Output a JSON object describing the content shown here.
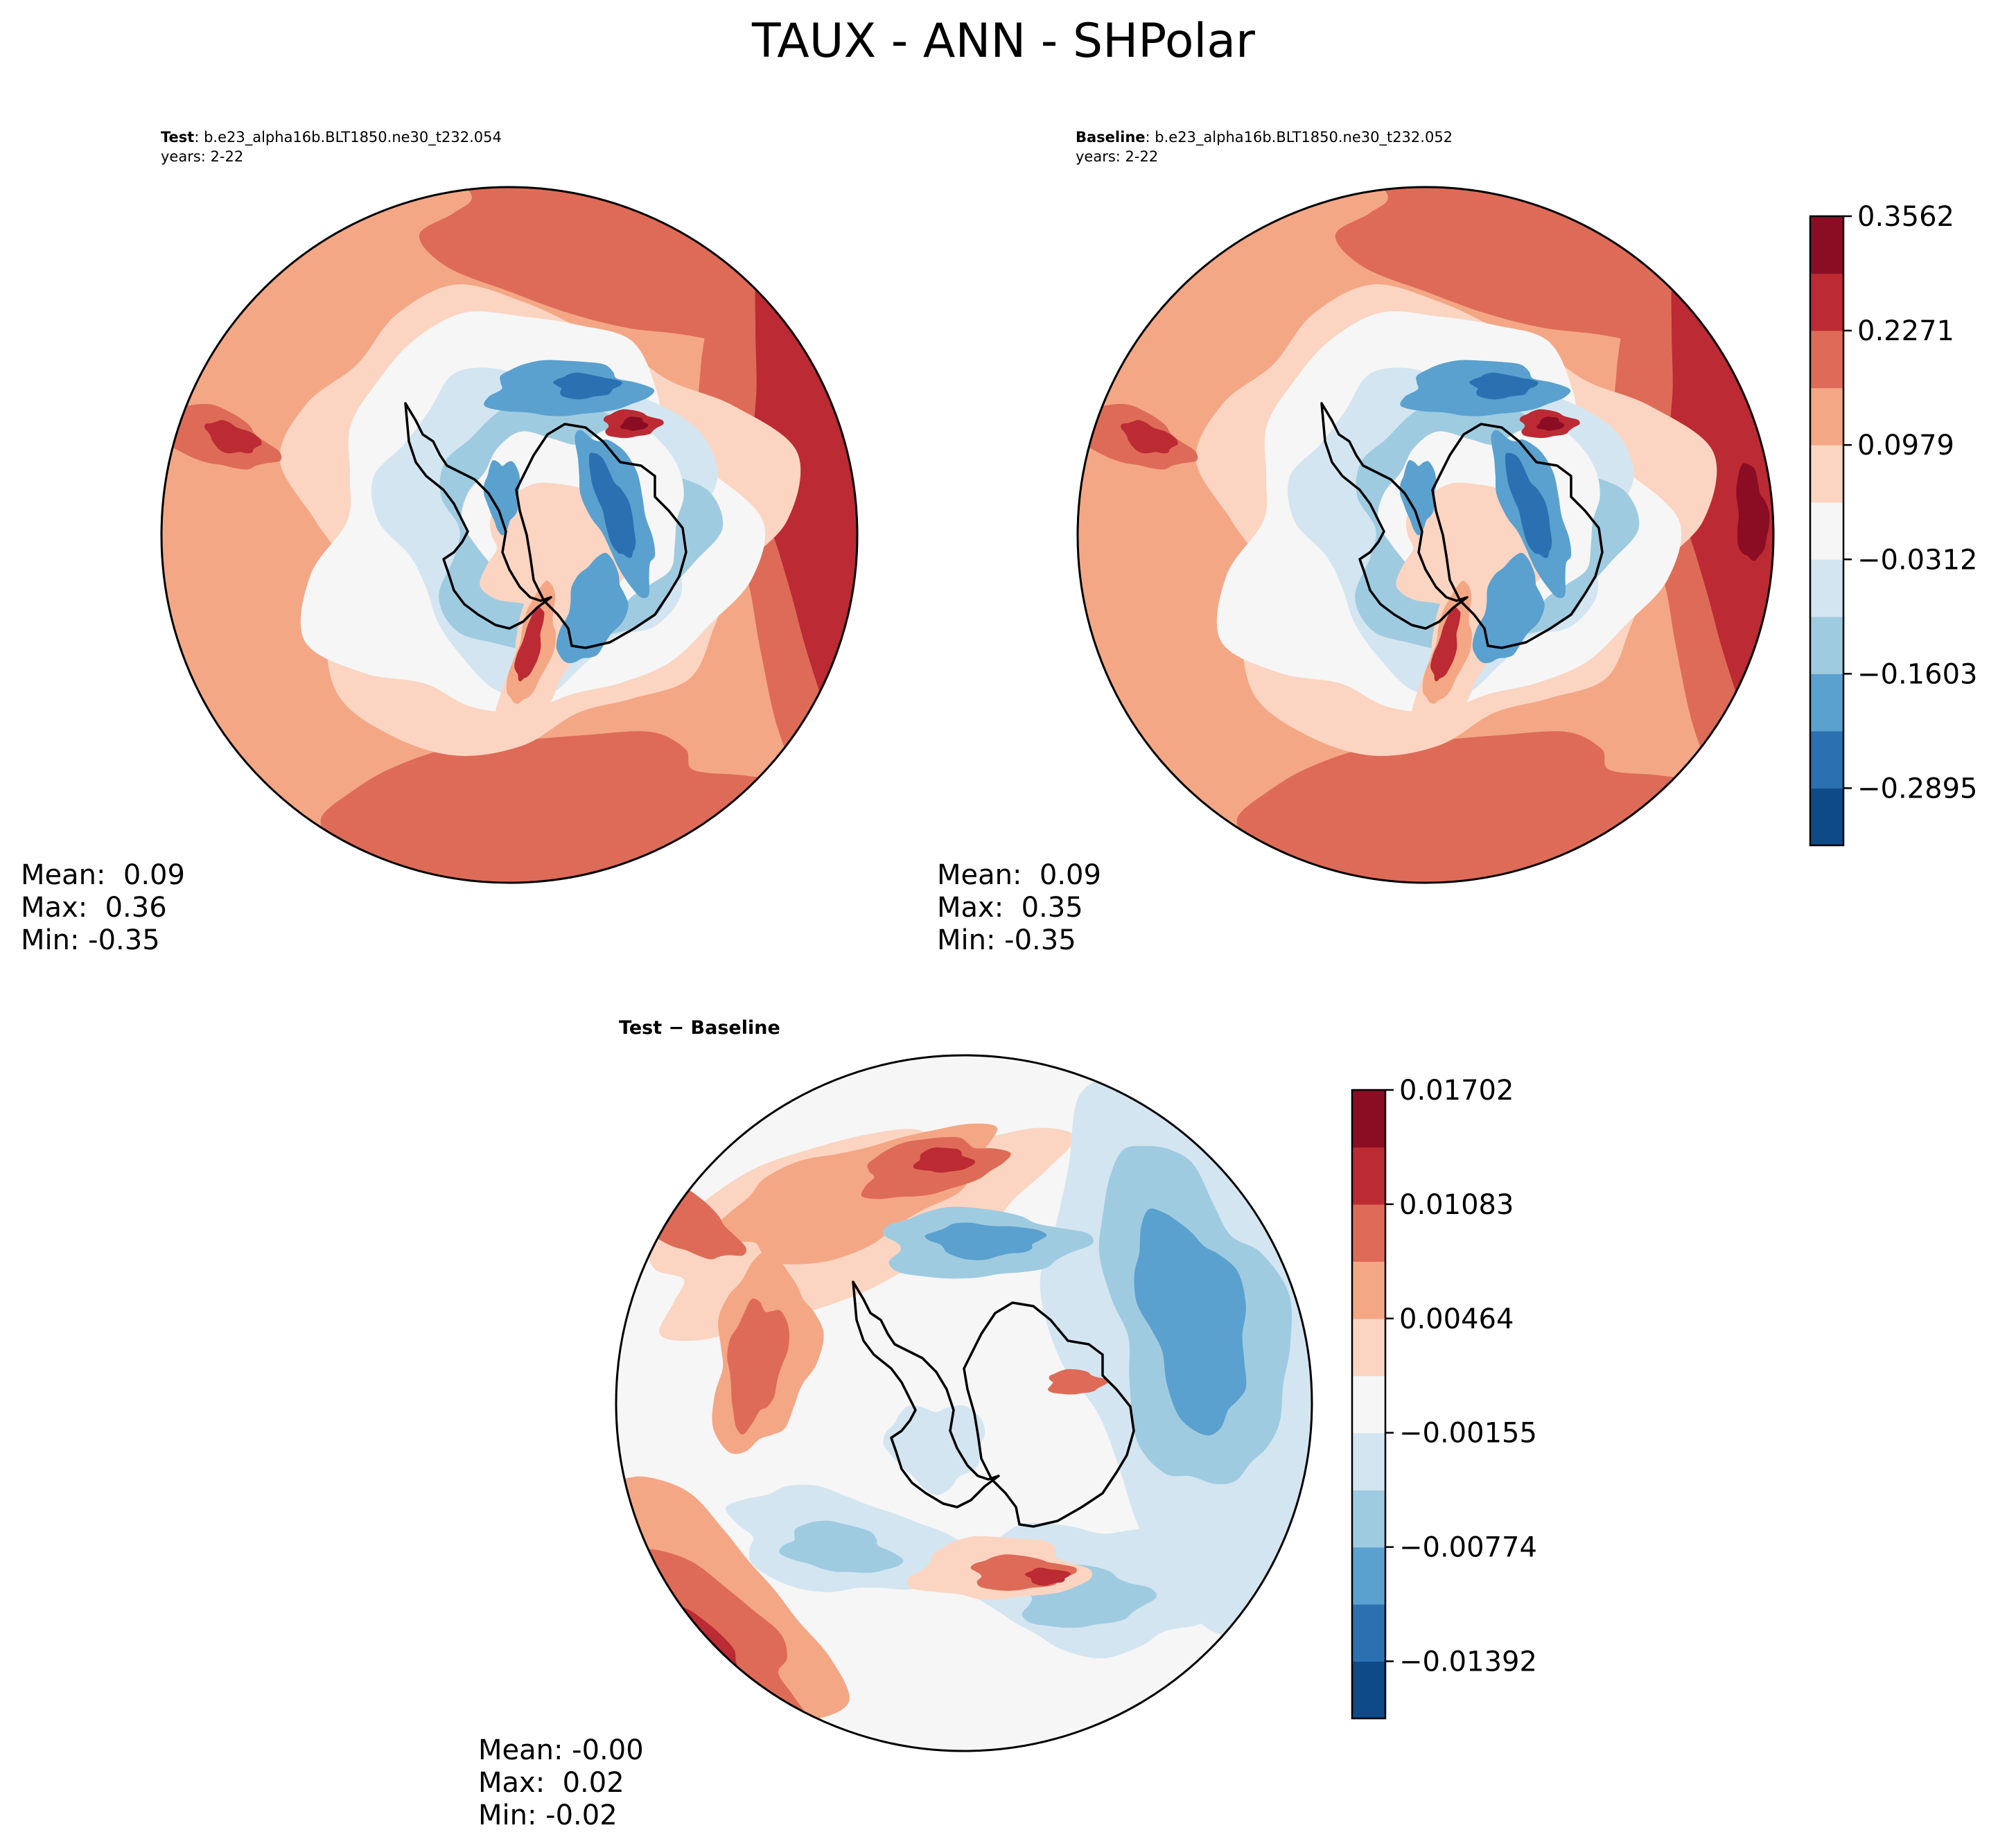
{
  "title": "TAUX - ANN - SHPolar",
  "colors": [
    "#0d4a87",
    "#2b71b2",
    "#5aa1cf",
    "#9fcbe1",
    "#d3e5f0",
    "#f6f6f6",
    "#fbd5c2",
    "#f4a785",
    "#de6b57",
    "#bc2a33",
    "#8a0d24"
  ],
  "land_color": "#000000",
  "panels": [
    {
      "id": "test",
      "label": "Test",
      "case": ": b.e23_alpha16b.BLT1850.ne30_t232.054",
      "years": "years: 2-22",
      "stats": {
        "mean": "Mean:  0.09",
        "max": "Max:  0.36",
        "min": "Min: -0.35"
      }
    },
    {
      "id": "baseline",
      "label": "Baseline",
      "case": ": b.e23_alpha16b.BLT1850.ne30_t232.052",
      "years": "years: 2-22",
      "stats": {
        "mean": "Mean:  0.09",
        "max": "Max:  0.35",
        "min": "Min: -0.35"
      }
    },
    {
      "id": "diff",
      "label": "Test − Baseline",
      "stats": {
        "mean": "Mean: -0.00",
        "max": "Max:  0.02",
        "min": "Min: -0.02"
      }
    }
  ],
  "colorbars": [
    {
      "id": "main",
      "ticks": [
        "−0.2895",
        "−0.1603",
        "−0.0312",
        "0.0979",
        "0.2271",
        "0.3562"
      ]
    },
    {
      "id": "diff",
      "ticks": [
        "−0.01392",
        "−0.00774",
        "−0.00155",
        "0.00464",
        "0.01083",
        "0.01702"
      ]
    }
  ],
  "chart_data": [
    {
      "type": "heatmap",
      "projection": "south-polar-stereographic",
      "variable": "TAUX",
      "title": "Test",
      "levels": [
        -0.35,
        -0.2895,
        -0.2249,
        -0.1603,
        -0.0958,
        -0.0312,
        0.0333,
        0.0979,
        0.1625,
        0.2271,
        0.2916,
        0.3562
      ],
      "mean": 0.09,
      "max": 0.36,
      "min": -0.35
    },
    {
      "type": "heatmap",
      "projection": "south-polar-stereographic",
      "variable": "TAUX",
      "title": "Baseline",
      "levels": [
        -0.35,
        -0.2895,
        -0.2249,
        -0.1603,
        -0.0958,
        -0.0312,
        0.0333,
        0.0979,
        0.1625,
        0.2271,
        0.2916,
        0.3562
      ],
      "mean": 0.09,
      "max": 0.35,
      "min": -0.35
    },
    {
      "type": "heatmap",
      "projection": "south-polar-stereographic",
      "variable": "TAUX",
      "title": "Test − Baseline",
      "levels": [
        -0.02,
        -0.01392,
        -0.01083,
        -0.00774,
        -0.00464,
        -0.00155,
        0.00155,
        0.00464,
        0.00774,
        0.01083,
        0.01392,
        0.01702
      ],
      "mean": -0.0,
      "max": 0.02,
      "min": -0.02
    }
  ]
}
